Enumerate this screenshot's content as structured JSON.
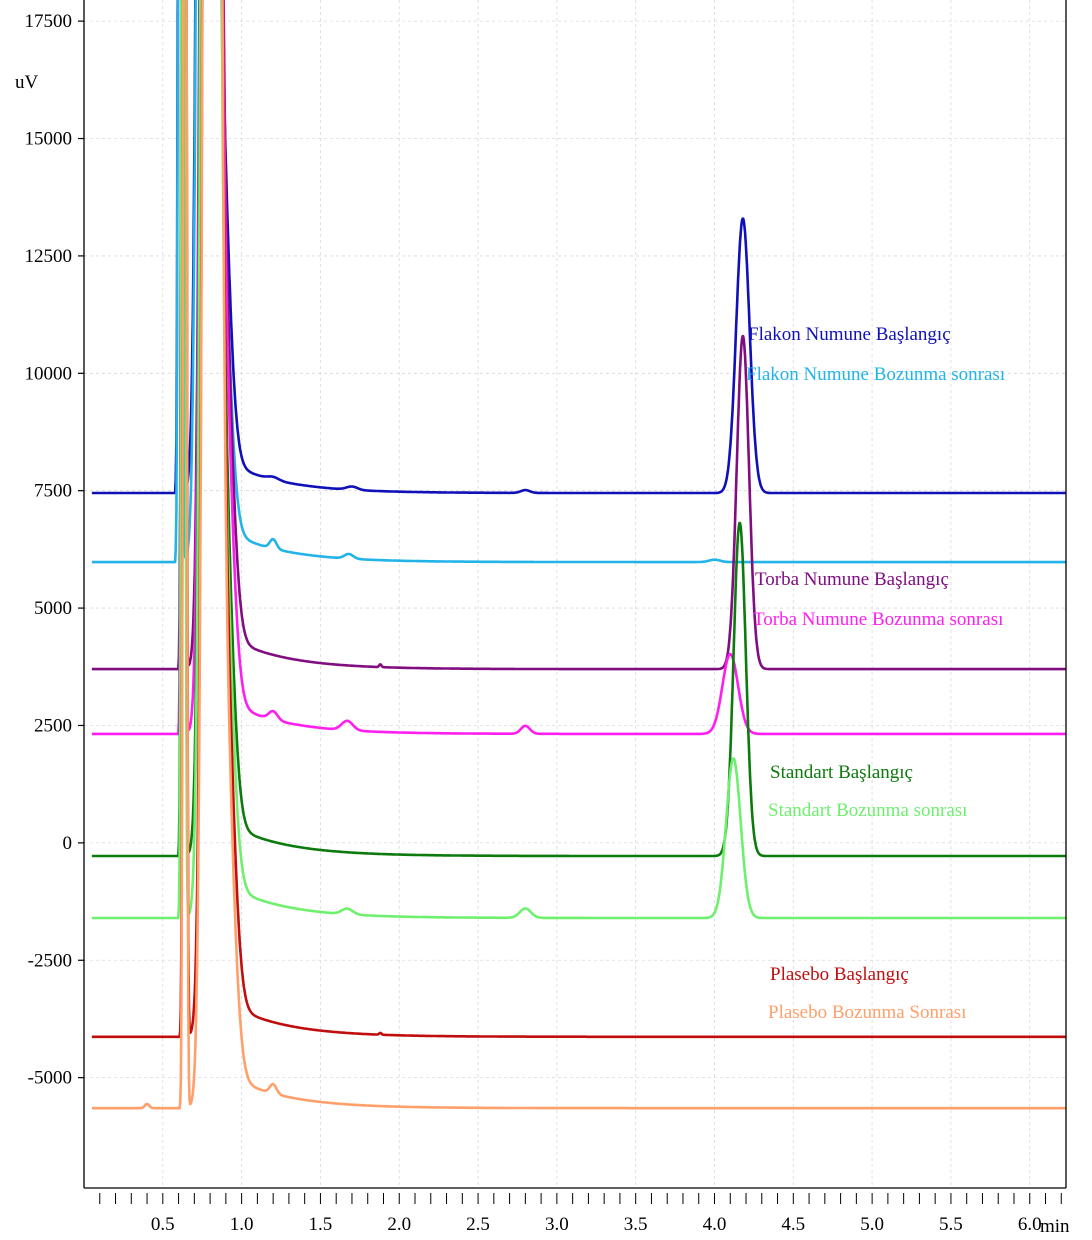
{
  "chart_data": {
    "type": "line",
    "title": "",
    "xlabel": "min",
    "ylabel": "uV",
    "xlim": [
      0.05,
      6.35
    ],
    "ylim": [
      -7500,
      17800
    ],
    "x_ticks": [
      0.5,
      1.0,
      1.5,
      2.0,
      2.5,
      3.0,
      3.5,
      4.0,
      4.5,
      5.0,
      5.5,
      6.0
    ],
    "x_tick_labels": [
      "0.5",
      "1.0",
      "1.5",
      "2.0",
      "2.5",
      "3.0",
      "3.5",
      "4.0",
      "4.5",
      "5.0",
      "5.5",
      "6.0"
    ],
    "y_ticks": [
      17500,
      15000,
      12500,
      10000,
      7500,
      5000,
      2500,
      0,
      -2500,
      -5000
    ],
    "y_tick_labels": [
      "17500",
      "15000",
      "12500",
      "10000",
      "7500",
      "5000",
      "2500",
      "0",
      "-2500",
      "-5000"
    ],
    "grid": true,
    "legend_placement": "inline-right",
    "series": [
      {
        "name": "Flakon Numune Başlangıç",
        "color": "#1010b8",
        "baseline": 7450,
        "solvent_peak_start": 0.58,
        "peaks": [
          [
            1.2,
            60,
            0.05
          ],
          [
            1.7,
            70,
            0.05
          ],
          [
            2.8,
            60,
            0.04
          ],
          [
            4.18,
            5850,
            0.06
          ]
        ]
      },
      {
        "name": "Flakon Numune Bozunma sonrası",
        "color": "#22b4e8",
        "baseline": 5980,
        "solvent_peak_start": 0.58,
        "peaks": [
          [
            1.2,
            200,
            0.03
          ],
          [
            1.68,
            100,
            0.04
          ],
          [
            4.0,
            50,
            0.05
          ]
        ]
      },
      {
        "name": "Torba Numune Başlangıç",
        "color": "#800e80",
        "baseline": 3700,
        "solvent_peak_start": 0.6,
        "peaks": [
          [
            1.88,
            60,
            0.01
          ],
          [
            4.18,
            7100,
            0.055
          ]
        ]
      },
      {
        "name": "Torba Numune Bozunma sonrası",
        "color": "#ff1ef0",
        "baseline": 2320,
        "solvent_peak_start": 0.6,
        "peaks": [
          [
            1.2,
            180,
            0.04
          ],
          [
            1.67,
            200,
            0.05
          ],
          [
            2.8,
            170,
            0.04
          ],
          [
            4.1,
            1700,
            0.07
          ]
        ]
      },
      {
        "name": "Standart Başlangıç",
        "color": "#0d7a0d",
        "baseline": -280,
        "solvent_peak_start": 0.6,
        "peaks": [
          [
            4.16,
            7100,
            0.055
          ]
        ]
      },
      {
        "name": "Standart Bozunma sonrası",
        "color": "#6ef06e",
        "baseline": -1600,
        "solvent_peak_start": 0.6,
        "peaks": [
          [
            1.67,
            120,
            0.05
          ],
          [
            2.8,
            200,
            0.05
          ],
          [
            4.12,
            3400,
            0.065
          ]
        ]
      },
      {
        "name": "Plasebo Başlangıç",
        "color": "#c00e0e",
        "baseline": -4130,
        "solvent_peak_start": 0.61,
        "peaks": [
          [
            1.88,
            40,
            0.01
          ]
        ]
      },
      {
        "name": "Plasebo Bozunma  Sonrası",
        "color": "#ffa06a",
        "baseline": -5650,
        "solvent_peak_start": 0.61,
        "peaks": [
          [
            0.4,
            90,
            0.02
          ],
          [
            1.2,
            200,
            0.03
          ]
        ]
      }
    ],
    "legend_groups": [
      {
        "labels": [
          "Flakon Numune Başlangıç",
          "Flakon Numune Bozunma sonrası"
        ],
        "colors": [
          "#1010b8",
          "#22b4e8"
        ]
      },
      {
        "labels": [
          "Torba Numune Başlangıç",
          "Torba Numune Bozunma sonrası"
        ],
        "colors": [
          "#800e80",
          "#ff1ef0"
        ]
      },
      {
        "labels": [
          "Standart Başlangıç",
          "Standart Bozunma sonrası"
        ],
        "colors": [
          "#0d7a0d",
          "#6ef06e"
        ]
      },
      {
        "labels": [
          "Plasebo Başlangıç",
          "Plasebo Bozunma  Sonrası"
        ],
        "colors": [
          "#c00e0e",
          "#ffa06a"
        ]
      }
    ]
  }
}
